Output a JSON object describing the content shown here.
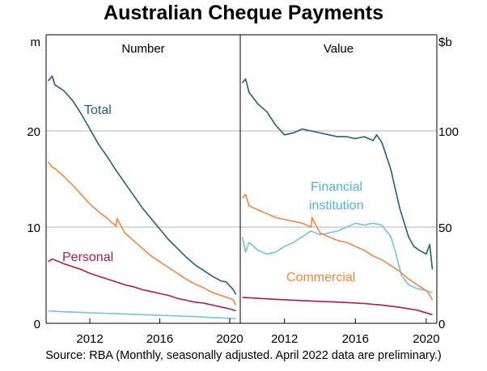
{
  "chart_data": {
    "type": "line",
    "title": "Australian Cheque Payments",
    "source": "Source: RBA (Monthly, seasonally adjusted. April 2022 data are preliminary.)",
    "x_range": [
      2009.5,
      2020.6
    ],
    "x_ticks": [
      2012,
      2016,
      2020
    ],
    "x_tick_labels": [
      "2012",
      "2016",
      "2020"
    ],
    "gridlines": "horizontal",
    "panels": [
      {
        "title": "Number",
        "unit": "m",
        "unit_side": "left",
        "ylim": [
          0,
          30
        ],
        "y_ticks": [
          0,
          10,
          20
        ],
        "y_tick_labels": [
          "0",
          "10",
          "20"
        ],
        "series": [
          {
            "name": "Total",
            "color": "#1f5f7f",
            "label_color": "#1f5f7f",
            "x": [
              2009.62,
              2009.85,
              2010.0,
              2010.5,
              2011.0,
              2011.5,
              2012.0,
              2012.5,
              2013.0,
              2013.5,
              2014.0,
              2014.5,
              2015.0,
              2015.5,
              2016.0,
              2016.5,
              2017.0,
              2017.5,
              2018.0,
              2018.5,
              2019.0,
              2019.5,
              2019.8,
              2020.0,
              2020.2,
              2020.35
            ],
            "y": [
              25.2,
              25.7,
              24.8,
              24.2,
              23.2,
              21.8,
              20.2,
              18.6,
              17.3,
              15.9,
              14.6,
              13.3,
              12.0,
              10.9,
              9.8,
              8.7,
              7.8,
              6.9,
              6.1,
              5.5,
              4.9,
              4.4,
              4.3,
              3.9,
              3.5,
              3.0
            ]
          },
          {
            "name": "Personal",
            "color": "#b5174b",
            "label_color": "#b5174b",
            "x": [
              2009.62,
              2009.85,
              2010.5,
              2011.0,
              2011.5,
              2012.0,
              2012.5,
              2013.0,
              2013.5,
              2014.0,
              2014.5,
              2015.0,
              2015.5,
              2016.0,
              2016.5,
              2017.0,
              2017.5,
              2018.0,
              2018.5,
              2019.0,
              2019.5,
              2020.0,
              2020.35
            ],
            "y": [
              6.4,
              6.7,
              6.2,
              5.9,
              5.6,
              5.2,
              4.9,
              4.6,
              4.3,
              4.0,
              3.8,
              3.5,
              3.3,
              3.1,
              2.9,
              2.6,
              2.4,
              2.2,
              2.1,
              1.9,
              1.7,
              1.5,
              1.3
            ]
          },
          {
            "name": "Commercial",
            "color": "#f7853a",
            "x": [
              2009.62,
              2009.85,
              2010.0,
              2010.5,
              2011.0,
              2011.5,
              2012.0,
              2012.5,
              2013.0,
              2013.5,
              2013.55,
              2014.0,
              2014.5,
              2015.0,
              2015.5,
              2016.0,
              2016.5,
              2017.0,
              2017.5,
              2018.0,
              2018.5,
              2019.0,
              2019.5,
              2020.0,
              2020.2,
              2020.35
            ],
            "y": [
              16.8,
              16.2,
              16.1,
              15.3,
              14.4,
              13.4,
              12.4,
              11.6,
              10.9,
              10.1,
              10.9,
              9.4,
              8.6,
              7.8,
              7.0,
              6.4,
              5.8,
              5.2,
              4.6,
              4.1,
              3.7,
              3.2,
              2.9,
              2.6,
              2.4,
              1.9
            ]
          },
          {
            "name": "Financial institution",
            "color": "#6cc4e8",
            "x": [
              2009.62,
              2010.5,
              2012.0,
              2013.5,
              2015.0,
              2016.5,
              2018.0,
              2019.0,
              2020.35
            ],
            "y": [
              1.3,
              1.2,
              1.1,
              1.0,
              0.9,
              0.8,
              0.7,
              0.6,
              0.5
            ]
          }
        ]
      },
      {
        "title": "Value",
        "unit": "$b",
        "unit_side": "right",
        "ylim": [
          0,
          150
        ],
        "y_ticks": [
          0,
          50,
          100
        ],
        "y_tick_labels": [
          "0",
          "50",
          "100"
        ],
        "series": [
          {
            "name": "Total",
            "color": "#1f5f7f",
            "x": [
              2009.62,
              2009.8,
              2010.0,
              2010.5,
              2011.0,
              2011.5,
              2012.0,
              2012.5,
              2013.0,
              2013.5,
              2014.0,
              2014.5,
              2015.0,
              2015.5,
              2016.0,
              2016.5,
              2017.0,
              2017.2,
              2017.5,
              2018.0,
              2018.5,
              2019.0,
              2019.3,
              2019.6,
              2020.0,
              2020.2,
              2020.35
            ],
            "y": [
              125,
              127,
              120,
              114,
              110,
              103,
              98,
              99,
              101,
              100,
              99,
              98,
              97,
              97,
              96,
              97,
              95,
              98,
              94,
              80,
              60,
              45,
              40,
              38,
              36,
              41,
              28
            ]
          },
          {
            "name": "Financial institution",
            "color": "#6cc4e8",
            "label_color": "#4fb4e2",
            "x": [
              2009.62,
              2009.8,
              2010.0,
              2010.5,
              2011.0,
              2011.5,
              2012.0,
              2012.5,
              2013.0,
              2013.5,
              2014.0,
              2014.5,
              2015.0,
              2015.5,
              2016.0,
              2016.5,
              2017.0,
              2017.5,
              2018.0,
              2018.3,
              2018.6,
              2019.0,
              2019.5,
              2020.0,
              2020.35
            ],
            "y": [
              45,
              37,
              42,
              38,
              36,
              37,
              40,
              42,
              45,
              48,
              46,
              47,
              48,
              50,
              52,
              51,
              52,
              51,
              45,
              36,
              25,
              20,
              18,
              17,
              16
            ]
          },
          {
            "name": "Commercial",
            "color": "#f7853a",
            "label_color": "#f7853a",
            "x": [
              2009.62,
              2009.8,
              2010.0,
              2010.5,
              2011.0,
              2011.5,
              2012.0,
              2012.5,
              2013.0,
              2013.5,
              2013.55,
              2014.0,
              2014.5,
              2015.0,
              2015.5,
              2016.0,
              2016.5,
              2017.0,
              2017.5,
              2018.0,
              2018.5,
              2019.0,
              2019.5,
              2020.0,
              2020.2,
              2020.35
            ],
            "y": [
              65,
              67,
              61,
              59,
              57,
              55,
              54,
              53,
              52,
              50,
              55,
              47,
              45,
              43,
              42,
              40,
              38,
              35,
              33,
              30,
              27,
              23,
              20,
              17,
              15,
              12
            ]
          },
          {
            "name": "Personal",
            "color": "#b5174b",
            "x": [
              2009.62,
              2010.5,
              2011.5,
              2012.5,
              2013.5,
              2014.5,
              2015.5,
              2016.5,
              2017.5,
              2018.5,
              2019.5,
              2020.35
            ],
            "y": [
              13.5,
              13.0,
              12.5,
              12.0,
              11.6,
              11.2,
              10.8,
              10.3,
              9.5,
              8.3,
              6.8,
              4.5
            ]
          }
        ]
      }
    ],
    "annotations": [
      {
        "panel": 0,
        "text": "Total",
        "series": "Total"
      },
      {
        "panel": 0,
        "text": "Personal",
        "series": "Personal"
      },
      {
        "panel": 1,
        "text": "Financial",
        "series": "Financial institution"
      },
      {
        "panel": 1,
        "text": "institution",
        "series": "Financial institution"
      },
      {
        "panel": 1,
        "text": "Commercial",
        "series": "Commercial"
      }
    ]
  }
}
